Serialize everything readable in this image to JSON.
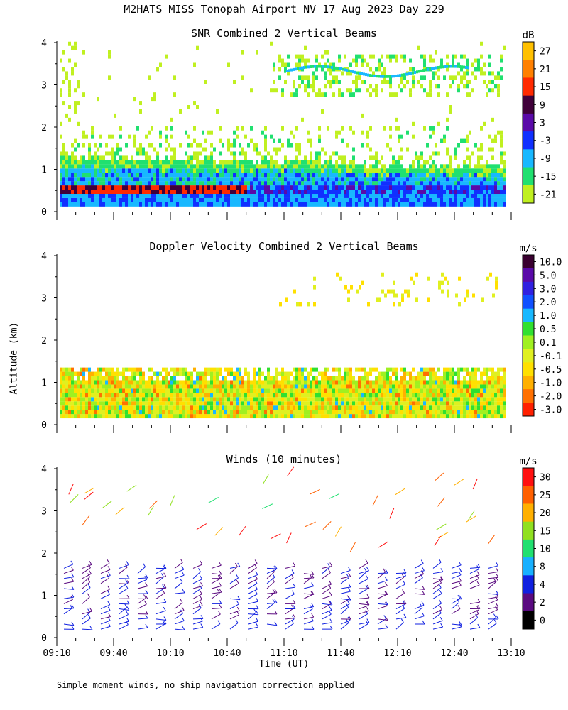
{
  "title": "M2HATS MISS Tonopah Airport NV  17 Aug 2023 Day 229",
  "ylabel": "Altitude (km)",
  "xlabel": "Time (UT)",
  "footnote": "Simple moment winds, no ship navigation correction applied",
  "x_ticks": [
    "09:10",
    "09:40",
    "10:10",
    "10:40",
    "11:10",
    "11:40",
    "12:10",
    "12:40",
    "13:10"
  ],
  "chart_data": [
    {
      "type": "heatmap",
      "title": "SNR Combined 2 Vertical Beams",
      "xlabel": "Time (UT)",
      "ylabel": "Altitude (km)",
      "xlim": [
        "09:10",
        "13:10"
      ],
      "ylim": [
        0,
        4
      ],
      "y_ticks": [
        "0",
        "1",
        "2",
        "3",
        "4"
      ],
      "colorbar": {
        "unit": "dB",
        "labels": [
          "27",
          "21",
          "15",
          "9",
          "3",
          "-3",
          "-9",
          "-15",
          "-21"
        ],
        "colors": [
          "#FFC000",
          "#FF8000",
          "#FF2A00",
          "#40003A",
          "#5A0AA8",
          "#1030FF",
          "#18B8FF",
          "#20E070",
          "#C0F020"
        ]
      },
      "features": [
        {
          "layer": "boundary layer",
          "top_km": 1.2,
          "note": "strong echo (blue/purple) below ~0.6 km, red layer near 0.5 km early"
        },
        {
          "layer": "clear-air returns",
          "range_km": [
            1.2,
            2.0
          ]
        },
        {
          "layer": "elevated layer",
          "range_km": [
            2.7,
            3.6
          ],
          "note": "from ~11:10 onward"
        }
      ]
    },
    {
      "type": "heatmap",
      "title": "Doppler Velocity Combined 2 Vertical Beams",
      "xlabel": "Time (UT)",
      "ylabel": "Altitude (km)",
      "xlim": [
        "09:10",
        "13:10"
      ],
      "ylim": [
        0,
        4
      ],
      "y_ticks": [
        "0",
        "1",
        "2",
        "3",
        "4"
      ],
      "colorbar": {
        "unit": "m/s",
        "labels": [
          "10.0",
          "5.0",
          "3.0",
          "2.0",
          "1.0",
          "0.5",
          "0.1",
          "-0.1",
          "-0.5",
          "-1.0",
          "-2.0",
          "-3.0"
        ],
        "colors": [
          "#3A0030",
          "#5A0AA8",
          "#3020E0",
          "#1050FF",
          "#18B8FF",
          "#30E030",
          "#A0F020",
          "#E0F020",
          "#FFE000",
          "#FFB000",
          "#FF7000",
          "#FF2000"
        ]
      },
      "features": [
        {
          "layer": "boundary layer",
          "top_km": 1.3,
          "note": "mostly near zero velocity (yellow/green)"
        },
        {
          "layer": "elevated layer",
          "range_km": [
            2.8,
            3.6
          ],
          "note": "from ~11:10 onward"
        }
      ]
    },
    {
      "type": "scatter",
      "title": "Winds (10 minutes)",
      "xlabel": "Time (UT)",
      "ylabel": "Altitude (km)",
      "xlim": [
        "09:10",
        "13:10"
      ],
      "ylim": [
        0,
        4
      ],
      "y_ticks": [
        "0",
        "1",
        "2",
        "3",
        "4"
      ],
      "marker": "wind barbs",
      "colorbar": {
        "unit": "m/s",
        "labels": [
          "30",
          "25",
          "20",
          "15",
          "10",
          "8",
          "4",
          "2",
          "0"
        ],
        "colors": [
          "#FF1010",
          "#FF6000",
          "#FFB000",
          "#90E020",
          "#20E070",
          "#18B0FF",
          "#1020E0",
          "#5A0A80",
          "#000000"
        ]
      }
    }
  ]
}
